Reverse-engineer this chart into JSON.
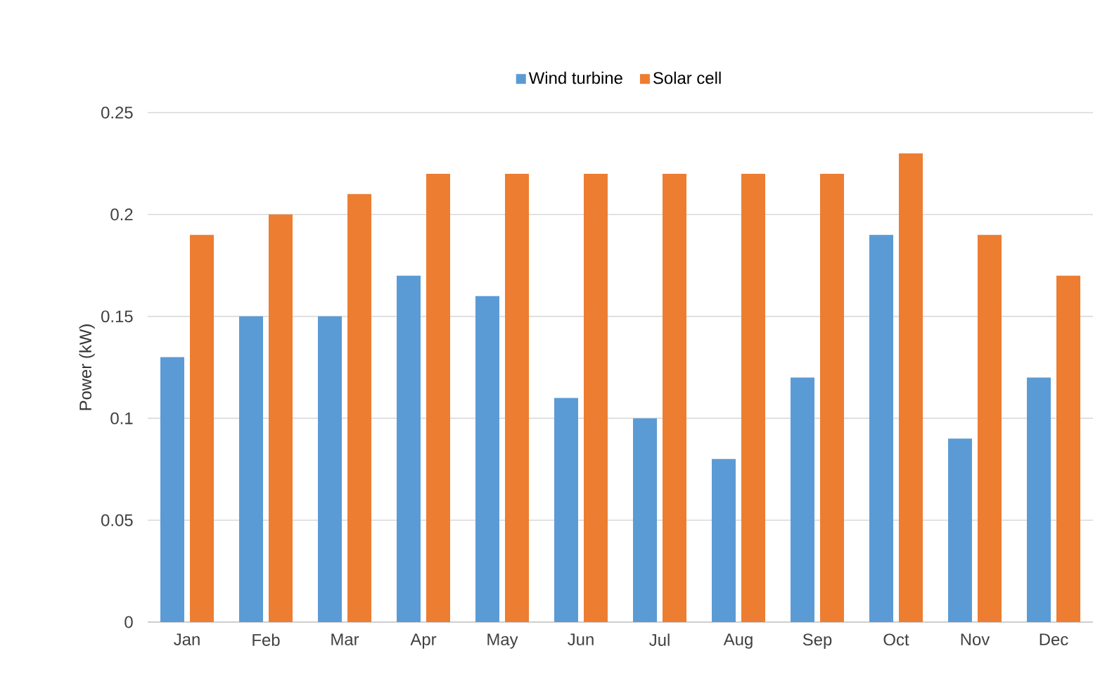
{
  "chart_data": {
    "type": "bar",
    "ylabel": "Power (kW)",
    "categories": [
      "Jan",
      "Feb",
      "Mar",
      "Apr",
      "May",
      "Jun",
      "Jul",
      "Aug",
      "Sep",
      "Oct",
      "Nov",
      "Dec"
    ],
    "series": [
      {
        "name": "Wind turbine",
        "color": "#5b9bd5",
        "values": [
          0.13,
          0.15,
          0.15,
          0.17,
          0.16,
          0.11,
          0.1,
          0.08,
          0.12,
          0.19,
          0.09,
          0.12
        ]
      },
      {
        "name": "Solar cell",
        "color": "#ed7d31",
        "values": [
          0.19,
          0.2,
          0.21,
          0.22,
          0.22,
          0.22,
          0.22,
          0.22,
          0.22,
          0.23,
          0.19,
          0.17
        ]
      }
    ],
    "ylim": [
      0,
      0.25
    ],
    "yticks": [
      0,
      0.05,
      0.1,
      0.15,
      0.2,
      0.25
    ],
    "grid": "y",
    "legend": "top"
  }
}
